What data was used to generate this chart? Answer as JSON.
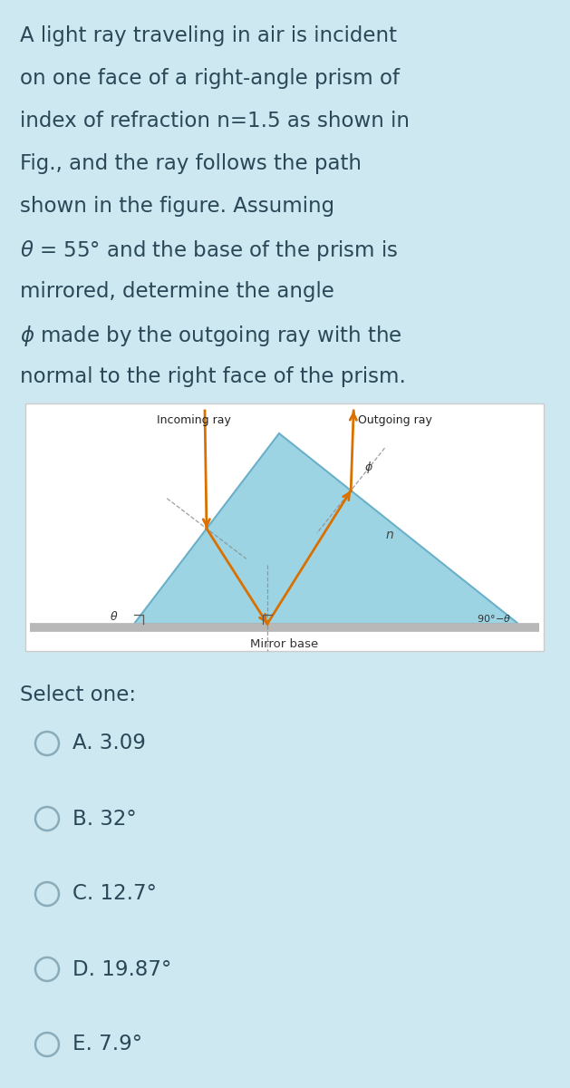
{
  "bg_color": "#cde8f0",
  "title_lines": [
    "A light ray traveling in air is incident",
    "on one face of a right-angle prism of",
    "index of refraction n=1.5 as shown in",
    "Fig., and the ray follows the path",
    "shown in the figure. Assuming",
    "$\\theta$ = 55° and the base of the prism is",
    "mirrored, determine the angle",
    "$\\phi$ made by the outgoing ray with the",
    "normal to the right face of the prism."
  ],
  "title_fontsize": 16.5,
  "title_color": "#2a4858",
  "prism_fill": "#9dd4e4",
  "prism_edge": "#6ab0c8",
  "mirror_color": "#b8b8b8",
  "ray_color": "#d97000",
  "dash_color": "#888888",
  "select_one_text": "Select one:",
  "options": [
    "A. 3.09",
    "B. 32°",
    "C. 12.7°",
    "D. 19.87°",
    "E. 7.9°"
  ],
  "option_fontsize": 16.5,
  "option_color": "#2a4858",
  "circle_color": "#8aacba"
}
